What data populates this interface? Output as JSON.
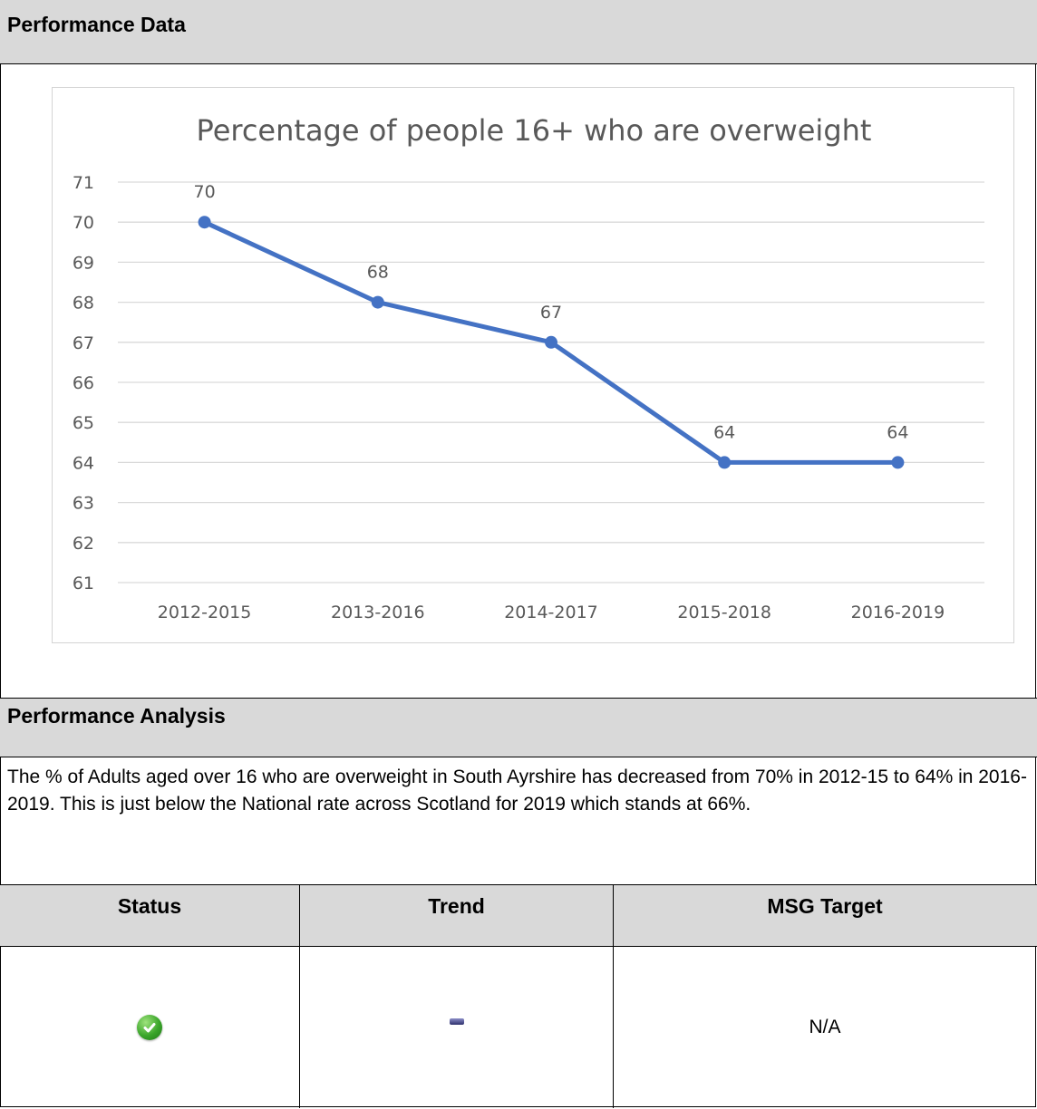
{
  "sections": {
    "data_header": "Performance Data",
    "analysis_header": "Performance Analysis"
  },
  "analysis": {
    "text": "The % of  Adults aged over 16 who are overweight in South Ayrshire has decreased from 70% in 2012-15 to 64% in 2016-2019.  This is just below the National rate across Scotland for 2019 which stands at 66%."
  },
  "table": {
    "headers": [
      "Status",
      "Trend",
      "MSG Target"
    ],
    "status_icon": "green-check-icon",
    "trend_icon": "no-change-dash-icon",
    "msg_target": "N/A"
  },
  "chart_data": {
    "type": "line",
    "title": "Percentage of people 16+ who are overweight",
    "categories": [
      "2012-2015",
      "2013-2016",
      "2014-2017",
      "2015-2018",
      "2016-2019"
    ],
    "series": [
      {
        "values": [
          70,
          68,
          67,
          64,
          64
        ]
      }
    ],
    "data_labels": [
      "70",
      "68",
      "67",
      "64",
      "64"
    ],
    "y_ticks": [
      71,
      70,
      69,
      68,
      67,
      66,
      65,
      64,
      63,
      62,
      61
    ],
    "ylim": [
      61,
      71
    ],
    "grid": true,
    "legend": "none",
    "line_color": "#4472c4"
  }
}
